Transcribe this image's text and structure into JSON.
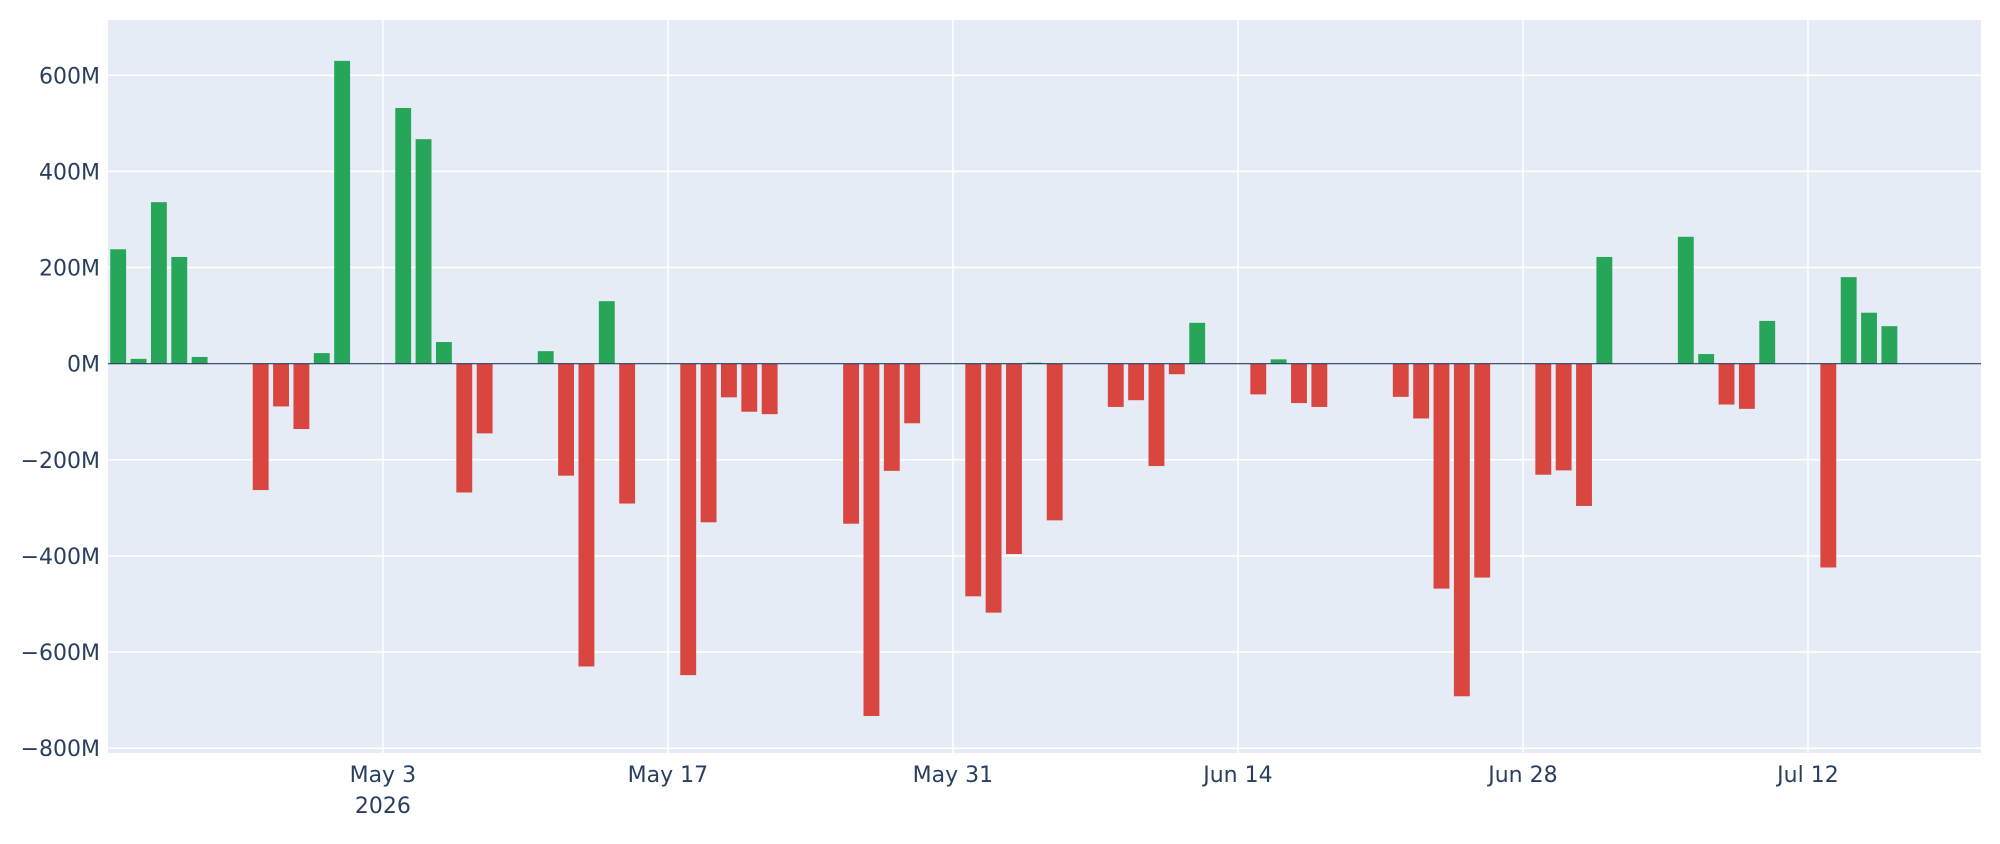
{
  "chart_data": {
    "type": "bar",
    "xlabel": "",
    "ylabel": "",
    "ylim": [
      -810,
      715
    ],
    "x_range": [
      "2026-04-19T12:00",
      "2026-07-20T12:00"
    ],
    "y_ticks": [
      {
        "value": 600,
        "label": "600M"
      },
      {
        "value": 400,
        "label": "400M"
      },
      {
        "value": 200,
        "label": "200M"
      },
      {
        "value": 0,
        "label": "0M"
      },
      {
        "value": -200,
        "label": "−200M"
      },
      {
        "value": -400,
        "label": "−400M"
      },
      {
        "value": -600,
        "label": "−600M"
      },
      {
        "value": -800,
        "label": "−800M"
      }
    ],
    "x_ticks": [
      {
        "value": "2026-05-03",
        "label": "May 3",
        "sublabel": "2026"
      },
      {
        "value": "2026-05-17",
        "label": "May 17",
        "sublabel": ""
      },
      {
        "value": "2026-05-31",
        "label": "May 31",
        "sublabel": ""
      },
      {
        "value": "2026-06-14",
        "label": "Jun 14",
        "sublabel": ""
      },
      {
        "value": "2026-06-28",
        "label": "Jun 28",
        "sublabel": ""
      },
      {
        "value": "2026-07-12",
        "label": "Jul 12",
        "sublabel": ""
      }
    ],
    "grid": true,
    "legend": "none",
    "colors": {
      "positive": "#27a65a",
      "negative": "#d9453f",
      "plot_bg": "#e5ecf6",
      "grid": "#ffffff",
      "zero_line": "#2a3f5f",
      "text": "#2a3f5f"
    },
    "points": [
      {
        "x": "2026-04-20",
        "y": 238
      },
      {
        "x": "2026-04-21",
        "y": 10
      },
      {
        "x": "2026-04-22",
        "y": 336
      },
      {
        "x": "2026-04-23",
        "y": 222
      },
      {
        "x": "2026-04-24",
        "y": 14
      },
      {
        "x": "2026-04-27",
        "y": -263
      },
      {
        "x": "2026-04-28",
        "y": -89
      },
      {
        "x": "2026-04-29",
        "y": -136
      },
      {
        "x": "2026-04-30",
        "y": 22
      },
      {
        "x": "2026-05-01",
        "y": 630
      },
      {
        "x": "2026-05-04",
        "y": 532
      },
      {
        "x": "2026-05-05",
        "y": 467
      },
      {
        "x": "2026-05-06",
        "y": 45
      },
      {
        "x": "2026-05-07",
        "y": -268
      },
      {
        "x": "2026-05-08",
        "y": -145
      },
      {
        "x": "2026-05-11",
        "y": 26
      },
      {
        "x": "2026-05-12",
        "y": -233
      },
      {
        "x": "2026-05-13",
        "y": -630
      },
      {
        "x": "2026-05-14",
        "y": 130
      },
      {
        "x": "2026-05-15",
        "y": -291
      },
      {
        "x": "2026-05-18",
        "y": -648
      },
      {
        "x": "2026-05-19",
        "y": -330
      },
      {
        "x": "2026-05-20",
        "y": -70
      },
      {
        "x": "2026-05-21",
        "y": -100
      },
      {
        "x": "2026-05-22",
        "y": -105
      },
      {
        "x": "2026-05-26",
        "y": -333
      },
      {
        "x": "2026-05-27",
        "y": -733
      },
      {
        "x": "2026-05-28",
        "y": -223
      },
      {
        "x": "2026-05-29",
        "y": -124
      },
      {
        "x": "2026-06-01",
        "y": -484
      },
      {
        "x": "2026-06-02",
        "y": -518
      },
      {
        "x": "2026-06-03",
        "y": -396
      },
      {
        "x": "2026-06-04",
        "y": 2
      },
      {
        "x": "2026-06-05",
        "y": -326
      },
      {
        "x": "2026-06-08",
        "y": -90
      },
      {
        "x": "2026-06-09",
        "y": -76
      },
      {
        "x": "2026-06-10",
        "y": -213
      },
      {
        "x": "2026-06-11",
        "y": -22
      },
      {
        "x": "2026-06-12",
        "y": 85
      },
      {
        "x": "2026-06-15",
        "y": -64
      },
      {
        "x": "2026-06-16",
        "y": 9
      },
      {
        "x": "2026-06-17",
        "y": -82
      },
      {
        "x": "2026-06-18",
        "y": -90
      },
      {
        "x": "2026-06-22",
        "y": -69
      },
      {
        "x": "2026-06-23",
        "y": -114
      },
      {
        "x": "2026-06-24",
        "y": -468
      },
      {
        "x": "2026-06-25",
        "y": -692
      },
      {
        "x": "2026-06-26",
        "y": -445
      },
      {
        "x": "2026-06-29",
        "y": -231
      },
      {
        "x": "2026-06-30",
        "y": -222
      },
      {
        "x": "2026-07-01",
        "y": -296
      },
      {
        "x": "2026-07-02",
        "y": 222
      },
      {
        "x": "2026-07-06",
        "y": 264
      },
      {
        "x": "2026-07-07",
        "y": 20
      },
      {
        "x": "2026-07-08",
        "y": -85
      },
      {
        "x": "2026-07-09",
        "y": -94
      },
      {
        "x": "2026-07-10",
        "y": 89
      },
      {
        "x": "2026-07-13",
        "y": -424
      },
      {
        "x": "2026-07-14",
        "y": 180
      },
      {
        "x": "2026-07-15",
        "y": 106
      },
      {
        "x": "2026-07-16",
        "y": 78
      }
    ]
  }
}
